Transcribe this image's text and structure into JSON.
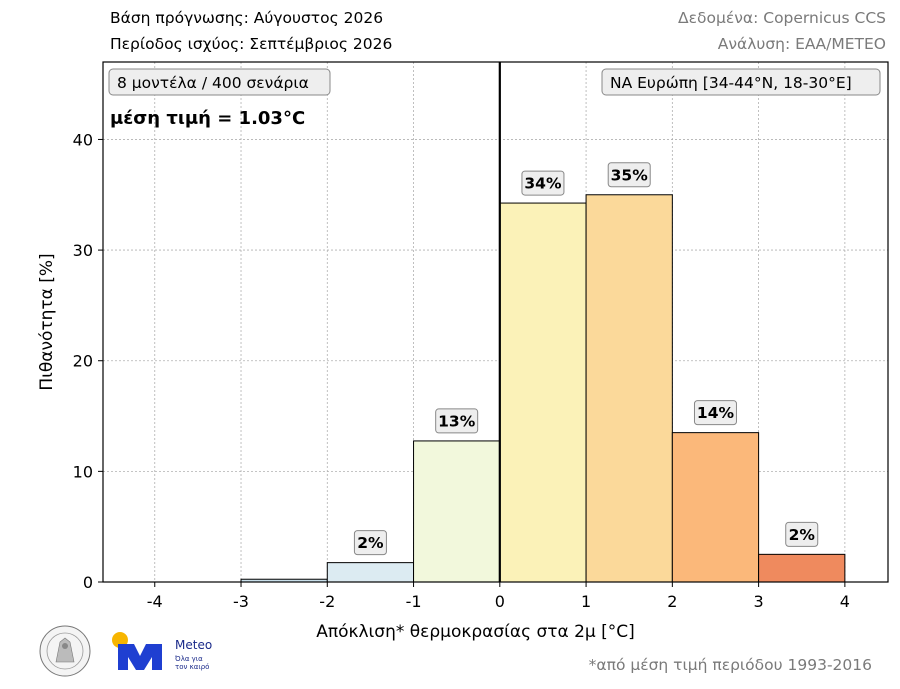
{
  "header": {
    "base_label": "Βάση πρόγνωσης: Αύγουστος 2026",
    "validity_label": "Περίοδος ισχύος: Σεπτέμβριος 2026",
    "data_source": "Δεδομένα: Copernicus CCS",
    "analysis": "Ανάλυση: ΕΑΑ/METEO"
  },
  "footnote": "*από μέση τιμή περιόδου 1993-2016",
  "logos": {
    "meteo_name": "Meteo",
    "meteo_tagline": "Όλα για τον καιρό",
    "seal": "observatory-seal",
    "meteo_mark": "meteo-logo"
  },
  "chart_data": {
    "type": "bar",
    "title": "",
    "xlabel": "Απόκλιση* θερμοκρασίας στα 2μ [°C]",
    "ylabel": "Πιθανότητα [%]",
    "xlim": [
      -4.6,
      4.5
    ],
    "ylim": [
      0,
      47
    ],
    "xticks": [
      -4,
      -3,
      -2,
      -1,
      0,
      1,
      2,
      3,
      4
    ],
    "xtick_labels": [
      "-4",
      "-3",
      "-2",
      "-1",
      "0",
      "1",
      "2",
      "3",
      "4"
    ],
    "yticks": [
      0,
      10,
      20,
      30,
      40
    ],
    "ytick_labels": [
      "0",
      "10",
      "20",
      "30",
      "40"
    ],
    "grid": true,
    "bins": [
      {
        "from": -4,
        "to": -3,
        "value": 0.0,
        "color": "#c9dfea",
        "label": ""
      },
      {
        "from": -3,
        "to": -2,
        "value": 0.25,
        "color": "#c9dfea",
        "label": ""
      },
      {
        "from": -2,
        "to": -1,
        "value": 1.75,
        "color": "#dcebf2",
        "label": "2%"
      },
      {
        "from": -1,
        "to": 0,
        "value": 12.75,
        "color": "#f2f8dc",
        "label": "13%"
      },
      {
        "from": 0,
        "to": 1,
        "value": 34.25,
        "color": "#fbf2b8",
        "label": "34%"
      },
      {
        "from": 1,
        "to": 2,
        "value": 35.0,
        "color": "#fbd99a",
        "label": "35%"
      },
      {
        "from": 2,
        "to": 3,
        "value": 13.5,
        "color": "#fbb87a",
        "label": "14%"
      },
      {
        "from": 3,
        "to": 4,
        "value": 2.5,
        "color": "#ef8a5e",
        "label": "2%"
      }
    ],
    "vline_x": 0,
    "annotations": {
      "ensemble": "8 μοντέλα / 400 σενάρια",
      "mean": "μέση τιμή = 1.03°C",
      "region": "ΝΑ Ευρώπη [34-44°N, 18-30°E]"
    }
  }
}
